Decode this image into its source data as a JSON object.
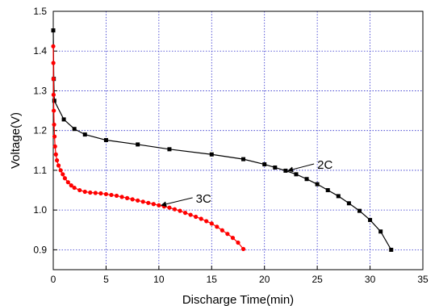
{
  "chart_data": {
    "type": "line",
    "xlabel": "Discharge Time(min)",
    "ylabel": "Voltage(V)",
    "xlim": [
      0,
      35
    ],
    "ylim": [
      0.85,
      1.5
    ],
    "xticks": [
      0,
      5,
      10,
      15,
      20,
      25,
      30,
      35
    ],
    "yticks": [
      0.9,
      1.0,
      1.1,
      1.2,
      1.3,
      1.4,
      1.5
    ],
    "xtick_labels": [
      "0",
      "5",
      "10",
      "15",
      "20",
      "25",
      "30",
      "35"
    ],
    "ytick_labels": [
      "0.9",
      "1.0",
      "1.1",
      "1.2",
      "1.3",
      "1.4",
      "1.5"
    ],
    "grid": true,
    "grid_style": "dotted",
    "series": [
      {
        "name": "2C",
        "color": "#000000",
        "marker": "square",
        "x": [
          0,
          0.05,
          0.1,
          1,
          2,
          3,
          5,
          8,
          11,
          15,
          18,
          20,
          21,
          22,
          23,
          24,
          25,
          26,
          27,
          28,
          29,
          30,
          31,
          32
        ],
        "y": [
          1.452,
          1.33,
          1.275,
          1.228,
          1.204,
          1.19,
          1.176,
          1.165,
          1.153,
          1.14,
          1.128,
          1.115,
          1.107,
          1.099,
          1.09,
          1.078,
          1.065,
          1.05,
          1.035,
          1.017,
          0.998,
          0.975,
          0.946,
          0.9
        ]
      },
      {
        "name": "3C",
        "color": "#ff0000",
        "marker": "circle",
        "x": [
          0,
          0.01,
          0.02,
          0.03,
          0.05,
          0.08,
          0.12,
          0.17,
          0.25,
          0.35,
          0.5,
          0.7,
          0.9,
          1.1,
          1.4,
          1.7,
          2.0,
          2.5,
          3.0,
          3.5,
          4.0,
          4.5,
          5.0,
          5.5,
          6.0,
          6.5,
          7.0,
          7.5,
          8.0,
          8.5,
          9.0,
          9.5,
          10.0,
          10.5,
          11.0,
          11.5,
          12.0,
          12.5,
          13.0,
          13.5,
          14.0,
          14.5,
          15.0,
          15.5,
          16.0,
          16.5,
          17.0,
          17.5,
          18.0
        ],
        "y": [
          1.412,
          1.37,
          1.33,
          1.29,
          1.25,
          1.215,
          1.185,
          1.16,
          1.14,
          1.125,
          1.112,
          1.1,
          1.09,
          1.08,
          1.07,
          1.062,
          1.056,
          1.05,
          1.046,
          1.044,
          1.043,
          1.042,
          1.04,
          1.038,
          1.036,
          1.033,
          1.03,
          1.027,
          1.024,
          1.021,
          1.018,
          1.015,
          1.012,
          1.009,
          1.006,
          1.002,
          0.998,
          0.993,
          0.988,
          0.983,
          0.978,
          0.972,
          0.966,
          0.958,
          0.949,
          0.94,
          0.93,
          0.918,
          0.902
        ]
      }
    ],
    "annotations": [
      {
        "text": "2C",
        "arrow_to": [
          22,
          1.099
        ],
        "text_at": [
          25,
          1.11
        ]
      },
      {
        "text": "3C",
        "arrow_to": [
          10,
          1.012
        ],
        "text_at": [
          13.5,
          1.025
        ]
      }
    ]
  }
}
